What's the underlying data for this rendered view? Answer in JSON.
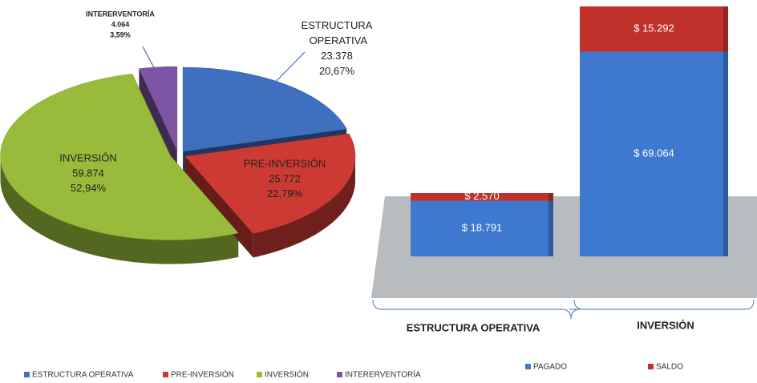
{
  "chart_data": [
    {
      "type": "pie",
      "categories": [
        "ESTRUCTURA OPERATIVA",
        "PRE-INVERSIÓN",
        "INVERSIÓN",
        "INTERERVENTORÍA"
      ],
      "values": [
        23378,
        25772,
        59874,
        4064
      ],
      "value_labels": [
        "23.378",
        "25.772",
        "59.874",
        "4.064"
      ],
      "percentage_labels": [
        "20,67%",
        "22,79%",
        "52,94%",
        "3,59%"
      ],
      "colors": [
        "#3f6fbf",
        "#cc3a33",
        "#98bb3c",
        "#7d55a4"
      ],
      "legend": "bottom"
    },
    {
      "type": "bar",
      "stacked": true,
      "categories": [
        "ESTRUCTURA OPERATIVA",
        "INVERSIÓN"
      ],
      "series": [
        {
          "name": "PAGADO",
          "color": "#3f78cf",
          "values": [
            18791,
            69064
          ],
          "value_labels": [
            "$ 18.791",
            "$ 69.064"
          ]
        },
        {
          "name": "SALDO",
          "color": "#c0312c",
          "values": [
            2570,
            15292
          ],
          "value_labels": [
            "$ 2.570",
            "$ 15.292"
          ]
        }
      ],
      "legend": "bottom"
    }
  ]
}
